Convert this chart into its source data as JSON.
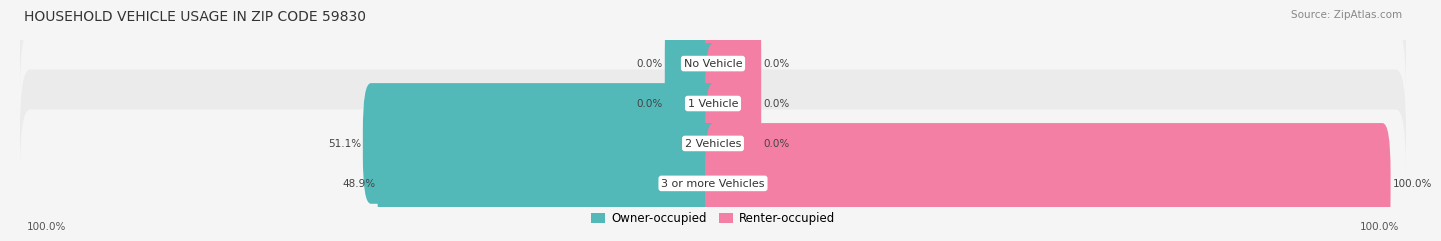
{
  "title": "HOUSEHOLD VEHICLE USAGE IN ZIP CODE 59830",
  "source": "Source: ZipAtlas.com",
  "categories": [
    "No Vehicle",
    "1 Vehicle",
    "2 Vehicles",
    "3 or more Vehicles"
  ],
  "owner_values": [
    0.0,
    0.0,
    51.1,
    48.9
  ],
  "renter_values": [
    0.0,
    0.0,
    0.0,
    100.0
  ],
  "owner_color": "#52b8b8",
  "renter_color": "#f47fa4",
  "row_color_odd": "#ebebeb",
  "row_color_even": "#f5f5f5",
  "bg_color": "#f5f5f5",
  "title_fontsize": 10,
  "source_fontsize": 7.5,
  "label_fontsize": 7.5,
  "category_fontsize": 8,
  "legend_fontsize": 8.5,
  "axis_label_left": "100.0%",
  "axis_label_right": "100.0%",
  "max_value": 100.0,
  "small_bar_stub": 6.0
}
